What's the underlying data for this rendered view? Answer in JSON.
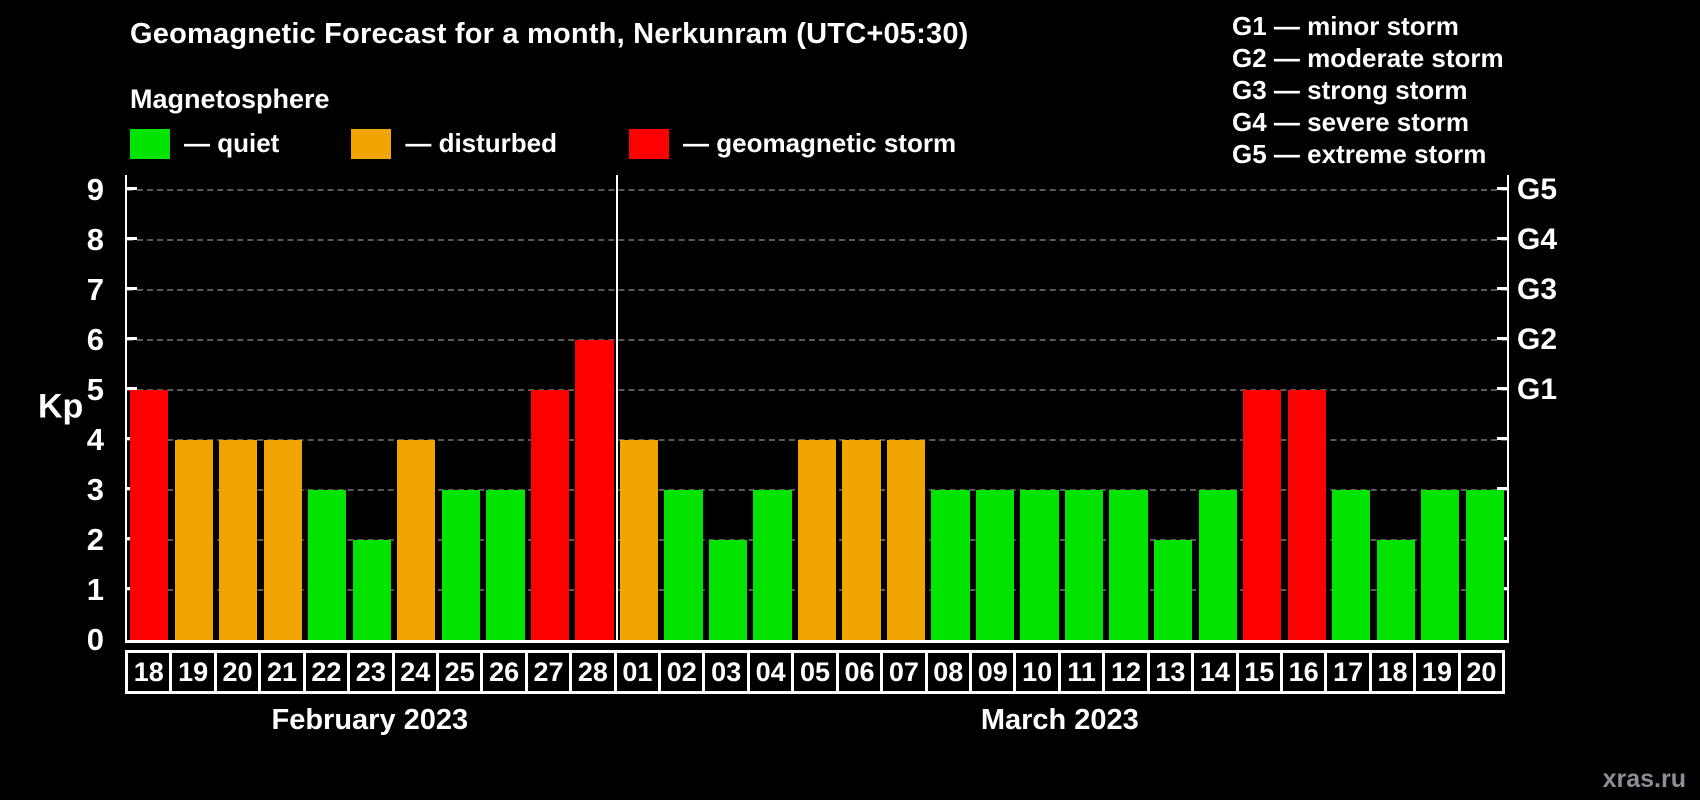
{
  "title": "Geomagnetic Forecast for a month, Nerkunram (UTC+05:30)",
  "subtitle": "Magnetosphere",
  "legend": {
    "items": [
      {
        "label": "— quiet",
        "status": "quiet"
      },
      {
        "label": "— disturbed",
        "status": "disturbed"
      },
      {
        "label": "— geomagnetic storm",
        "status": "storm"
      }
    ]
  },
  "g_legend": [
    "G1 — minor storm",
    "G2 — moderate storm",
    "G3 — strong storm",
    "G4 — severe storm",
    "G5 — extreme storm"
  ],
  "watermark": "xras.ru",
  "colors": {
    "quiet": "#00e400",
    "disturbed": "#f0a500",
    "storm": "#ff0000",
    "background": "#000000",
    "text": "#ffffff",
    "grid": "#5a5a5a",
    "watermark": "#8a8f98"
  },
  "chart_data": {
    "type": "bar",
    "title": "Geomagnetic Forecast for a month, Nerkunram (UTC+05:30)",
    "ylabel": "Kp",
    "ylim": [
      0,
      9.3
    ],
    "yticks": [
      0,
      1,
      2,
      3,
      4,
      5,
      6,
      7,
      8,
      9
    ],
    "right_axis_ticks": [
      {
        "label": "G1",
        "kp": 5
      },
      {
        "label": "G2",
        "kp": 6
      },
      {
        "label": "G3",
        "kp": 7
      },
      {
        "label": "G4",
        "kp": 8
      },
      {
        "label": "G5",
        "kp": 9
      }
    ],
    "grid": "dashed",
    "legend_position": "top-left",
    "months": [
      {
        "label": "February 2023",
        "days": 11
      },
      {
        "label": "March 2023",
        "days": 20
      }
    ],
    "categories": [
      "18",
      "19",
      "20",
      "21",
      "22",
      "23",
      "24",
      "25",
      "26",
      "27",
      "28",
      "01",
      "02",
      "03",
      "04",
      "05",
      "06",
      "07",
      "08",
      "09",
      "10",
      "11",
      "12",
      "13",
      "14",
      "15",
      "16",
      "17",
      "18",
      "19",
      "20"
    ],
    "values": [
      5,
      4,
      4,
      4,
      3,
      2,
      4,
      3,
      3,
      5,
      6,
      4,
      3,
      2,
      3,
      4,
      4,
      4,
      3,
      3,
      3,
      3,
      3,
      2,
      3,
      5,
      5,
      3,
      2,
      3,
      3
    ],
    "statuses": [
      "storm",
      "disturbed",
      "disturbed",
      "disturbed",
      "quiet",
      "quiet",
      "disturbed",
      "quiet",
      "quiet",
      "storm",
      "storm",
      "disturbed",
      "quiet",
      "quiet",
      "quiet",
      "disturbed",
      "disturbed",
      "disturbed",
      "quiet",
      "quiet",
      "quiet",
      "quiet",
      "quiet",
      "quiet",
      "quiet",
      "storm",
      "storm",
      "quiet",
      "quiet",
      "quiet",
      "quiet"
    ]
  }
}
